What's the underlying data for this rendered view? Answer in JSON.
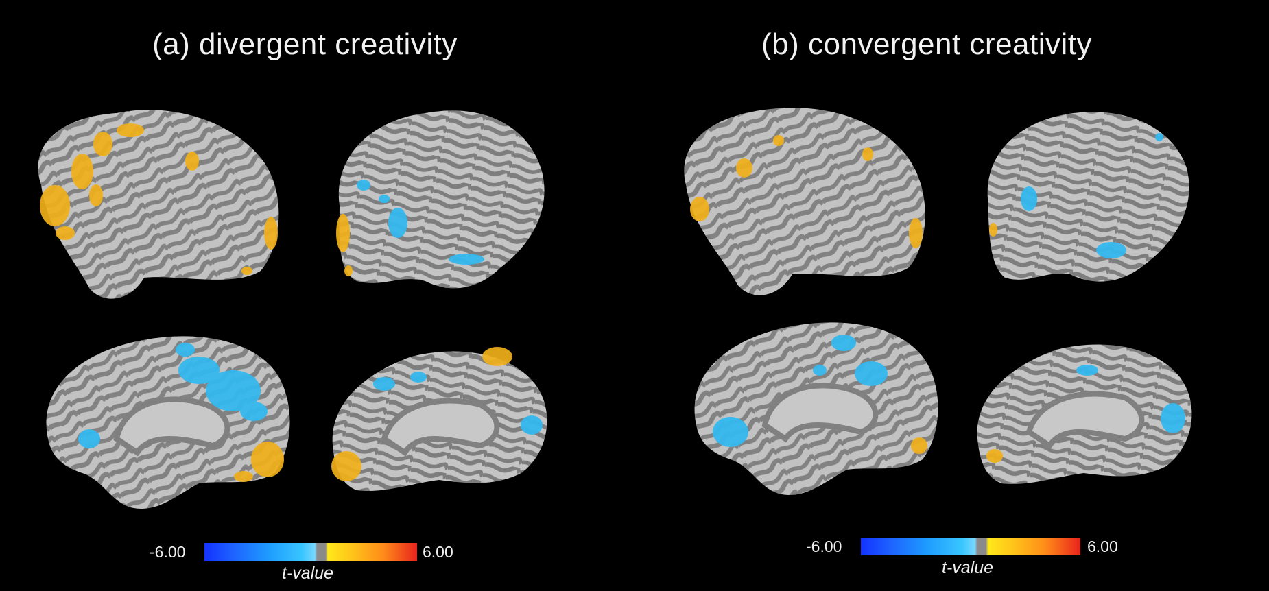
{
  "panels": [
    {
      "title": "(a)  divergent creativity",
      "colorbar": {
        "min_label": "-6.00",
        "max_label": "6.00",
        "axis_label": "t-value"
      }
    },
    {
      "title": "(b)  convergent creativity",
      "colorbar": {
        "min_label": "-6.00",
        "max_label": "6.00",
        "axis_label": "t-value"
      }
    }
  ],
  "colors": {
    "background": "#000000",
    "cortex_light": "#c3c3c3",
    "cortex_dark": "#808080",
    "positive": "#f2b21c",
    "negative": "#35b8ee"
  }
}
